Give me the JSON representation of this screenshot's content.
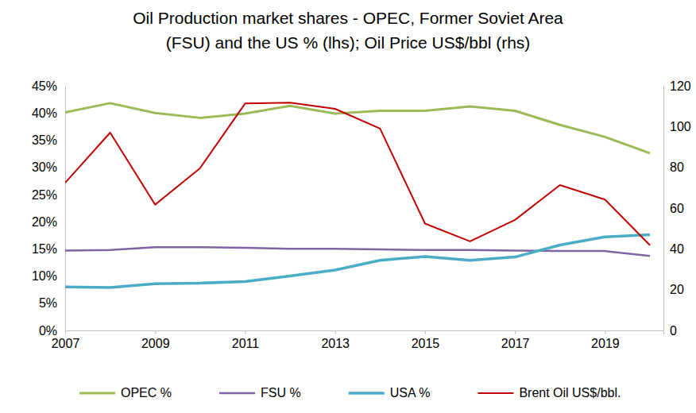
{
  "chart_data": {
    "type": "line",
    "title": [
      "Oil Production market shares - OPEC, Former Soviet Area",
      "(FSU) and the US % (lhs); Oil Price US$/bbl (rhs)"
    ],
    "x": [
      2007,
      2008,
      2009,
      2010,
      2011,
      2012,
      2013,
      2014,
      2015,
      2016,
      2017,
      2018,
      2019,
      2020
    ],
    "xlim": [
      2007,
      2020.3
    ],
    "xticks": [
      2007,
      2009,
      2011,
      2013,
      2015,
      2017,
      2019
    ],
    "ylim": [
      0,
      45
    ],
    "yticks": [
      {
        "value": 0,
        "label": "0%"
      },
      {
        "value": 5,
        "label": "5%"
      },
      {
        "value": 10,
        "label": "10%"
      },
      {
        "value": 15,
        "label": "15%"
      },
      {
        "value": 20,
        "label": "20%"
      },
      {
        "value": 25,
        "label": "25%"
      },
      {
        "value": 30,
        "label": "30%"
      },
      {
        "value": 35,
        "label": "35%"
      },
      {
        "value": 40,
        "label": "40%"
      },
      {
        "value": 45,
        "label": "45%"
      }
    ],
    "y2lim": [
      0,
      120
    ],
    "y2ticks": [
      0,
      20,
      40,
      60,
      80,
      100,
      120
    ],
    "grid": false,
    "legend": "bottom",
    "series": [
      {
        "name": "OPEC %",
        "color": "#9bbb59",
        "values": [
          40.1,
          41.8,
          40.0,
          39.1,
          39.9,
          41.3,
          39.9,
          40.4,
          40.4,
          41.2,
          40.4,
          37.8,
          35.6,
          32.6
        ]
      },
      {
        "name": "FSU %",
        "color": "#8064a2",
        "values": [
          14.7,
          14.8,
          15.3,
          15.3,
          15.2,
          15.0,
          15.0,
          14.9,
          14.8,
          14.8,
          14.7,
          14.6,
          14.6,
          13.7
        ]
      },
      {
        "name": "USA %",
        "color": "#4bacc6",
        "values": [
          8.0,
          7.9,
          8.6,
          8.7,
          9.0,
          10.0,
          11.1,
          12.9,
          13.6,
          12.9,
          13.5,
          15.7,
          17.2,
          17.6
        ]
      },
      {
        "name": "Brent Oil US$/bbl.",
        "color": "#c00000",
        "axis": "y2",
        "values": [
          72.4,
          97.0,
          61.7,
          79.6,
          111.3,
          111.7,
          108.7,
          99.0,
          52.4,
          43.7,
          54.2,
          71.3,
          64.2,
          41.8
        ]
      }
    ]
  }
}
